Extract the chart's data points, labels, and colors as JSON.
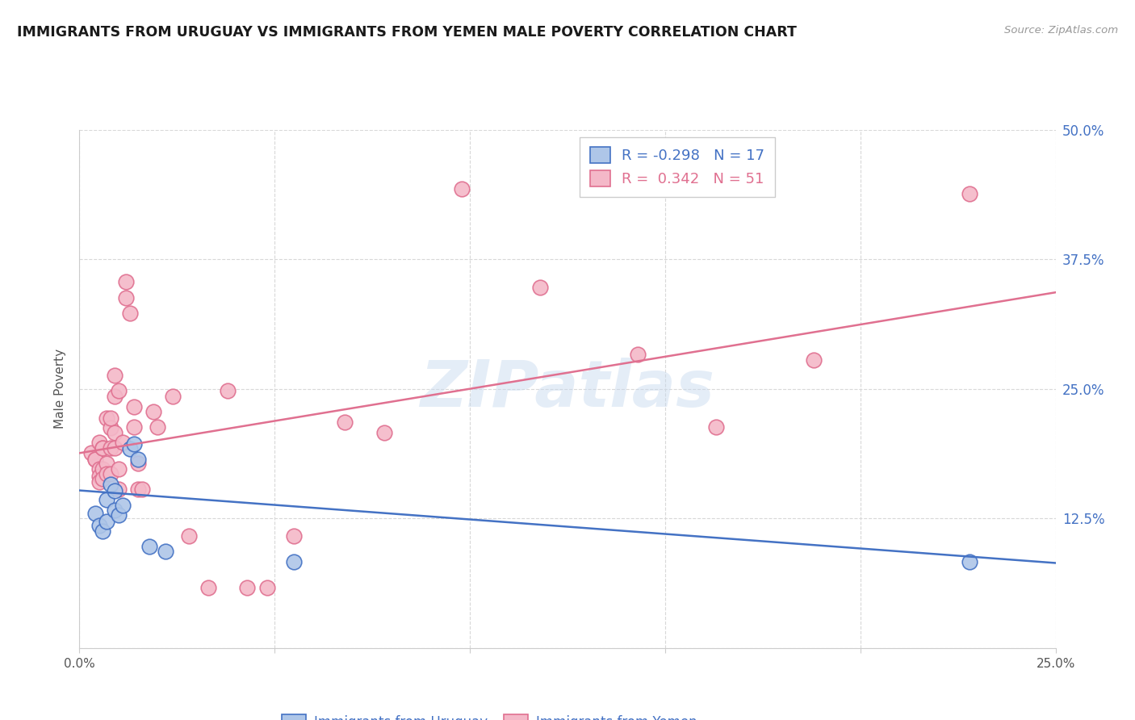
{
  "title": "IMMIGRANTS FROM URUGUAY VS IMMIGRANTS FROM YEMEN MALE POVERTY CORRELATION CHART",
  "source": "Source: ZipAtlas.com",
  "ylabel": "Male Poverty",
  "x_min": 0.0,
  "x_max": 0.25,
  "y_min": 0.0,
  "y_max": 0.5,
  "x_ticks": [
    0.0,
    0.05,
    0.1,
    0.15,
    0.2,
    0.25
  ],
  "y_ticks": [
    0.0,
    0.125,
    0.25,
    0.375,
    0.5
  ],
  "y_tick_labels": [
    "",
    "12.5%",
    "25.0%",
    "37.5%",
    "50.0%"
  ],
  "watermark": "ZIPatlas",
  "legend_r_uruguay": "-0.298",
  "legend_n_uruguay": "17",
  "legend_r_yemen": "0.342",
  "legend_n_yemen": "51",
  "uruguay_color": "#aec6e8",
  "yemen_color": "#f4b8c8",
  "uruguay_line_color": "#4472c4",
  "yemen_line_color": "#e07090",
  "background_color": "#ffffff",
  "grid_color": "#d8d8d8",
  "title_color": "#1a1a1a",
  "right_tick_color": "#4472c4",
  "uruguay_points": [
    [
      0.004,
      0.13
    ],
    [
      0.005,
      0.118
    ],
    [
      0.006,
      0.113
    ],
    [
      0.007,
      0.122
    ],
    [
      0.007,
      0.143
    ],
    [
      0.008,
      0.158
    ],
    [
      0.009,
      0.152
    ],
    [
      0.009,
      0.133
    ],
    [
      0.01,
      0.128
    ],
    [
      0.011,
      0.138
    ],
    [
      0.013,
      0.192
    ],
    [
      0.014,
      0.197
    ],
    [
      0.015,
      0.182
    ],
    [
      0.018,
      0.098
    ],
    [
      0.022,
      0.093
    ],
    [
      0.055,
      0.083
    ],
    [
      0.228,
      0.083
    ]
  ],
  "yemen_points": [
    [
      0.003,
      0.188
    ],
    [
      0.004,
      0.182
    ],
    [
      0.004,
      0.182
    ],
    [
      0.005,
      0.173
    ],
    [
      0.005,
      0.166
    ],
    [
      0.005,
      0.16
    ],
    [
      0.005,
      0.198
    ],
    [
      0.006,
      0.193
    ],
    [
      0.006,
      0.173
    ],
    [
      0.006,
      0.163
    ],
    [
      0.006,
      0.193
    ],
    [
      0.007,
      0.178
    ],
    [
      0.007,
      0.168
    ],
    [
      0.007,
      0.222
    ],
    [
      0.008,
      0.212
    ],
    [
      0.008,
      0.193
    ],
    [
      0.008,
      0.168
    ],
    [
      0.008,
      0.222
    ],
    [
      0.009,
      0.208
    ],
    [
      0.009,
      0.193
    ],
    [
      0.009,
      0.263
    ],
    [
      0.009,
      0.243
    ],
    [
      0.01,
      0.173
    ],
    [
      0.01,
      0.153
    ],
    [
      0.01,
      0.248
    ],
    [
      0.011,
      0.198
    ],
    [
      0.012,
      0.353
    ],
    [
      0.012,
      0.338
    ],
    [
      0.013,
      0.323
    ],
    [
      0.014,
      0.233
    ],
    [
      0.014,
      0.213
    ],
    [
      0.015,
      0.178
    ],
    [
      0.015,
      0.153
    ],
    [
      0.016,
      0.153
    ],
    [
      0.019,
      0.228
    ],
    [
      0.02,
      0.213
    ],
    [
      0.024,
      0.243
    ],
    [
      0.028,
      0.108
    ],
    [
      0.033,
      0.058
    ],
    [
      0.038,
      0.248
    ],
    [
      0.043,
      0.058
    ],
    [
      0.048,
      0.058
    ],
    [
      0.055,
      0.108
    ],
    [
      0.068,
      0.218
    ],
    [
      0.078,
      0.208
    ],
    [
      0.098,
      0.443
    ],
    [
      0.118,
      0.348
    ],
    [
      0.143,
      0.283
    ],
    [
      0.163,
      0.213
    ],
    [
      0.188,
      0.278
    ],
    [
      0.228,
      0.438
    ]
  ],
  "uruguay_trend_x": [
    0.0,
    0.25
  ],
  "uruguay_trend_y": [
    0.152,
    0.082
  ],
  "yemen_trend_x": [
    0.0,
    0.25
  ],
  "yemen_trend_y": [
    0.188,
    0.343
  ]
}
